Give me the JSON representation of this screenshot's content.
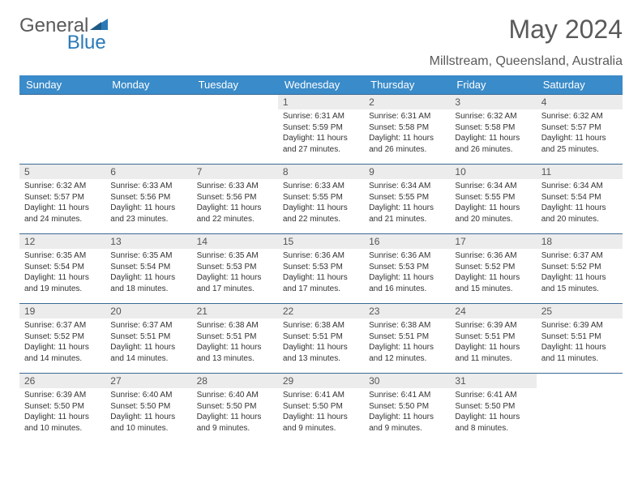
{
  "brand": {
    "part1": "General",
    "part2": "Blue"
  },
  "title": "May 2024",
  "location": "Millstream, Queensland, Australia",
  "colors": {
    "header_bg": "#3a8bc9",
    "header_text": "#ffffff",
    "band_bg": "#ececec",
    "rule": "#3a6a95",
    "text": "#333333",
    "muted": "#5a5a5a",
    "brand_blue": "#2a7ab8"
  },
  "typography": {
    "title_fontsize": 32,
    "location_fontsize": 16,
    "dayheader_fontsize": 13,
    "daynum_fontsize": 12,
    "cell_fontsize": 10
  },
  "day_headers": [
    "Sunday",
    "Monday",
    "Tuesday",
    "Wednesday",
    "Thursday",
    "Friday",
    "Saturday"
  ],
  "weeks": [
    [
      null,
      null,
      null,
      {
        "n": "1",
        "sr": "Sunrise: 6:31 AM",
        "ss": "Sunset: 5:59 PM",
        "d1": "Daylight: 11 hours",
        "d2": "and 27 minutes."
      },
      {
        "n": "2",
        "sr": "Sunrise: 6:31 AM",
        "ss": "Sunset: 5:58 PM",
        "d1": "Daylight: 11 hours",
        "d2": "and 26 minutes."
      },
      {
        "n": "3",
        "sr": "Sunrise: 6:32 AM",
        "ss": "Sunset: 5:58 PM",
        "d1": "Daylight: 11 hours",
        "d2": "and 26 minutes."
      },
      {
        "n": "4",
        "sr": "Sunrise: 6:32 AM",
        "ss": "Sunset: 5:57 PM",
        "d1": "Daylight: 11 hours",
        "d2": "and 25 minutes."
      }
    ],
    [
      {
        "n": "5",
        "sr": "Sunrise: 6:32 AM",
        "ss": "Sunset: 5:57 PM",
        "d1": "Daylight: 11 hours",
        "d2": "and 24 minutes."
      },
      {
        "n": "6",
        "sr": "Sunrise: 6:33 AM",
        "ss": "Sunset: 5:56 PM",
        "d1": "Daylight: 11 hours",
        "d2": "and 23 minutes."
      },
      {
        "n": "7",
        "sr": "Sunrise: 6:33 AM",
        "ss": "Sunset: 5:56 PM",
        "d1": "Daylight: 11 hours",
        "d2": "and 22 minutes."
      },
      {
        "n": "8",
        "sr": "Sunrise: 6:33 AM",
        "ss": "Sunset: 5:55 PM",
        "d1": "Daylight: 11 hours",
        "d2": "and 22 minutes."
      },
      {
        "n": "9",
        "sr": "Sunrise: 6:34 AM",
        "ss": "Sunset: 5:55 PM",
        "d1": "Daylight: 11 hours",
        "d2": "and 21 minutes."
      },
      {
        "n": "10",
        "sr": "Sunrise: 6:34 AM",
        "ss": "Sunset: 5:55 PM",
        "d1": "Daylight: 11 hours",
        "d2": "and 20 minutes."
      },
      {
        "n": "11",
        "sr": "Sunrise: 6:34 AM",
        "ss": "Sunset: 5:54 PM",
        "d1": "Daylight: 11 hours",
        "d2": "and 20 minutes."
      }
    ],
    [
      {
        "n": "12",
        "sr": "Sunrise: 6:35 AM",
        "ss": "Sunset: 5:54 PM",
        "d1": "Daylight: 11 hours",
        "d2": "and 19 minutes."
      },
      {
        "n": "13",
        "sr": "Sunrise: 6:35 AM",
        "ss": "Sunset: 5:54 PM",
        "d1": "Daylight: 11 hours",
        "d2": "and 18 minutes."
      },
      {
        "n": "14",
        "sr": "Sunrise: 6:35 AM",
        "ss": "Sunset: 5:53 PM",
        "d1": "Daylight: 11 hours",
        "d2": "and 17 minutes."
      },
      {
        "n": "15",
        "sr": "Sunrise: 6:36 AM",
        "ss": "Sunset: 5:53 PM",
        "d1": "Daylight: 11 hours",
        "d2": "and 17 minutes."
      },
      {
        "n": "16",
        "sr": "Sunrise: 6:36 AM",
        "ss": "Sunset: 5:53 PM",
        "d1": "Daylight: 11 hours",
        "d2": "and 16 minutes."
      },
      {
        "n": "17",
        "sr": "Sunrise: 6:36 AM",
        "ss": "Sunset: 5:52 PM",
        "d1": "Daylight: 11 hours",
        "d2": "and 15 minutes."
      },
      {
        "n": "18",
        "sr": "Sunrise: 6:37 AM",
        "ss": "Sunset: 5:52 PM",
        "d1": "Daylight: 11 hours",
        "d2": "and 15 minutes."
      }
    ],
    [
      {
        "n": "19",
        "sr": "Sunrise: 6:37 AM",
        "ss": "Sunset: 5:52 PM",
        "d1": "Daylight: 11 hours",
        "d2": "and 14 minutes."
      },
      {
        "n": "20",
        "sr": "Sunrise: 6:37 AM",
        "ss": "Sunset: 5:51 PM",
        "d1": "Daylight: 11 hours",
        "d2": "and 14 minutes."
      },
      {
        "n": "21",
        "sr": "Sunrise: 6:38 AM",
        "ss": "Sunset: 5:51 PM",
        "d1": "Daylight: 11 hours",
        "d2": "and 13 minutes."
      },
      {
        "n": "22",
        "sr": "Sunrise: 6:38 AM",
        "ss": "Sunset: 5:51 PM",
        "d1": "Daylight: 11 hours",
        "d2": "and 13 minutes."
      },
      {
        "n": "23",
        "sr": "Sunrise: 6:38 AM",
        "ss": "Sunset: 5:51 PM",
        "d1": "Daylight: 11 hours",
        "d2": "and 12 minutes."
      },
      {
        "n": "24",
        "sr": "Sunrise: 6:39 AM",
        "ss": "Sunset: 5:51 PM",
        "d1": "Daylight: 11 hours",
        "d2": "and 11 minutes."
      },
      {
        "n": "25",
        "sr": "Sunrise: 6:39 AM",
        "ss": "Sunset: 5:51 PM",
        "d1": "Daylight: 11 hours",
        "d2": "and 11 minutes."
      }
    ],
    [
      {
        "n": "26",
        "sr": "Sunrise: 6:39 AM",
        "ss": "Sunset: 5:50 PM",
        "d1": "Daylight: 11 hours",
        "d2": "and 10 minutes."
      },
      {
        "n": "27",
        "sr": "Sunrise: 6:40 AM",
        "ss": "Sunset: 5:50 PM",
        "d1": "Daylight: 11 hours",
        "d2": "and 10 minutes."
      },
      {
        "n": "28",
        "sr": "Sunrise: 6:40 AM",
        "ss": "Sunset: 5:50 PM",
        "d1": "Daylight: 11 hours",
        "d2": "and 9 minutes."
      },
      {
        "n": "29",
        "sr": "Sunrise: 6:41 AM",
        "ss": "Sunset: 5:50 PM",
        "d1": "Daylight: 11 hours",
        "d2": "and 9 minutes."
      },
      {
        "n": "30",
        "sr": "Sunrise: 6:41 AM",
        "ss": "Sunset: 5:50 PM",
        "d1": "Daylight: 11 hours",
        "d2": "and 9 minutes."
      },
      {
        "n": "31",
        "sr": "Sunrise: 6:41 AM",
        "ss": "Sunset: 5:50 PM",
        "d1": "Daylight: 11 hours",
        "d2": "and 8 minutes."
      },
      null
    ]
  ]
}
